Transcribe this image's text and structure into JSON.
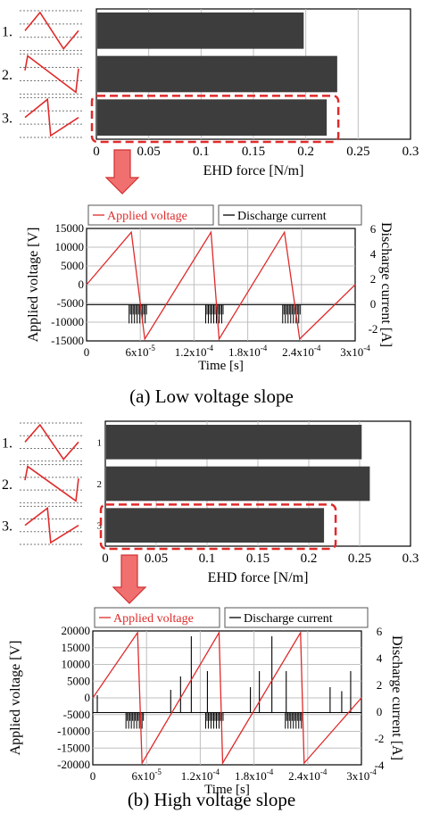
{
  "captions": [
    "(a) Low voltage slope",
    "(b) High voltage slope"
  ],
  "colors": {
    "bar": "#3d3d3d",
    "highlight": "#e02a2a",
    "applied_voltage": "#e02a2a",
    "discharge_current": "#000000",
    "grid": "#bfbfbf"
  },
  "chart_data": [
    {
      "type": "bar",
      "orientation": "horizontal",
      "categories": [
        "1.",
        "2.",
        "3."
      ],
      "values": [
        0.198,
        0.23,
        0.22
      ],
      "xlabel": "EHD force [N/m]",
      "xlim": [
        0,
        0.3
      ],
      "xticks": [
        "0",
        "0.05",
        "0.1",
        "0.15",
        "0.2",
        "0.25",
        "0.3"
      ],
      "highlighted_category": "3.",
      "grid": true
    },
    {
      "type": "line",
      "xlabel": "Time [s]",
      "ylabel": "Applied voltage [V]",
      "y2label": "Discharge current [A]",
      "xlim": [
        0,
        0.0003
      ],
      "ylim": [
        -15000,
        15000
      ],
      "y2lim": [
        -3,
        6
      ],
      "xticks": [
        "0",
        "6x10",
        "1.2x10",
        "1.8x10",
        "2.4x10",
        "3x10"
      ],
      "xtick_exponents": [
        "",
        "-5",
        "-4",
        "-4",
        "-4",
        "-4"
      ],
      "yticks": [
        "15000",
        "10000",
        "5000",
        "0",
        "-5000",
        "-10000",
        "-15000"
      ],
      "y2ticks": [
        "6",
        "4",
        "2",
        "0",
        "-2"
      ],
      "grid": true,
      "legend_position": "top",
      "series": [
        {
          "name": "Applied voltage",
          "axis": "left",
          "x": [
            0,
            5e-05,
            6.5e-05,
            0.000139,
            0.000148,
            0.000221,
            0.000238,
            0.0003
          ],
          "y": [
            0,
            14000,
            -14500,
            14000,
            -14500,
            14000,
            -14500,
            0
          ]
        },
        {
          "name": "Discharge current",
          "axis": "right",
          "baseline": -0.1,
          "bursts_x": [
            5.75e-05,
            0.000143,
            0.000229
          ],
          "bursts_min": -1.6
        }
      ]
    },
    {
      "type": "bar",
      "orientation": "horizontal",
      "categories": [
        "1.",
        "2.",
        "3."
      ],
      "bar_labels": [
        "1",
        "2",
        "3"
      ],
      "values": [
        0.252,
        0.26,
        0.215
      ],
      "xlabel": "EHD force [N/m]",
      "xlim": [
        0,
        0.3
      ],
      "xticks": [
        "0",
        "0.05",
        "0.1",
        "0.15",
        "0.2",
        "0.25",
        "0.3"
      ],
      "highlighted_category": "3.",
      "grid": true
    },
    {
      "type": "line",
      "xlabel": "Time [s]",
      "ylabel": "Applied voltage [V]",
      "y2label": "Discharge current [A]",
      "xlim": [
        0,
        0.0003
      ],
      "ylim": [
        -20000,
        20000
      ],
      "y2lim": [
        -4,
        6
      ],
      "xticks": [
        "0",
        "6x10",
        "1.2x10",
        "1.8x10",
        "2.4x10",
        "3x10"
      ],
      "xtick_exponents": [
        "",
        "-5",
        "-4",
        "-4",
        "-4",
        "-4"
      ],
      "yticks": [
        "20000",
        "15000",
        "10000",
        "5000",
        "0",
        "-5000",
        "-10000",
        "-15000",
        "-20000"
      ],
      "y2ticks": [
        "6",
        "4",
        "2",
        "0",
        "-2",
        "-4"
      ],
      "grid": true,
      "legend_position": "top",
      "series": [
        {
          "name": "Applied voltage",
          "axis": "left",
          "x": [
            0,
            5e-05,
            5.5e-05,
            0.000141,
            0.000145,
            0.000232,
            0.000236,
            0.0003
          ],
          "y": [
            0,
            19500,
            -19500,
            19500,
            -19500,
            19500,
            -19500,
            0
          ]
        },
        {
          "name": "Discharge current",
          "axis": "right",
          "baseline": -0.1,
          "spikes_x": [
            5e-06,
            8.7e-05,
            9.8e-05,
            0.00011,
            0.000128,
            0.000176,
            0.000186,
            0.0002,
            0.000216,
            0.000265,
            0.000278,
            0.000288
          ],
          "spikes_y": [
            1.2,
            1.6,
            2.6,
            5.6,
            3.0,
            1.8,
            3.0,
            5.6,
            3.0,
            1.8,
            1.5,
            3.0
          ],
          "bursts_x": [
            4.7e-05,
            0.000136,
            0.000225
          ],
          "bursts_min": -1.3
        }
      ]
    }
  ]
}
